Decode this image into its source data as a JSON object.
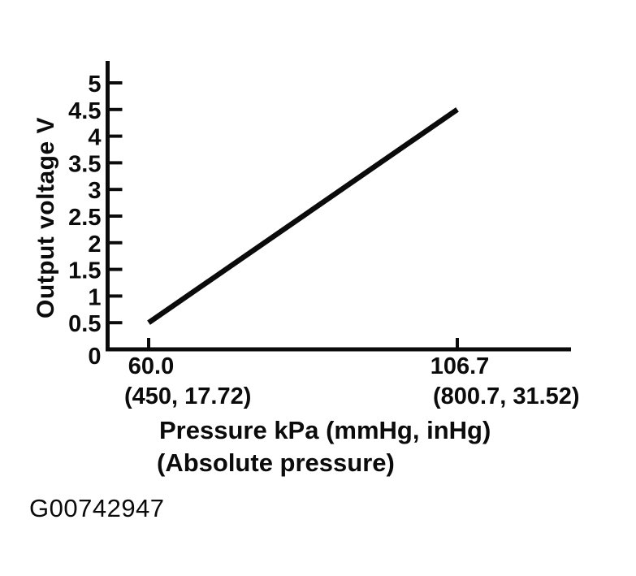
{
  "figure": {
    "id": "G00742947"
  },
  "colors": {
    "ink": "#0b0b0b",
    "background": "#ffffff"
  },
  "chart_data": {
    "type": "line",
    "title": "",
    "ylabel": "Output voltage V",
    "xlabel_line1": "Pressure kPa (mmHg, inHg)",
    "xlabel_line2": "(Absolute pressure)",
    "x": [
      60.0,
      106.7
    ],
    "y": [
      0.5,
      4.5
    ],
    "x_units": "kPa (mmHg, inHg)",
    "y_units": "V",
    "x_tick_values": [
      60.0,
      106.7
    ],
    "x_tick_labels": [
      "60.0",
      "106.7"
    ],
    "x_tick_sublabels": [
      "(450, 17.72)",
      "(800.7, 31.52)"
    ],
    "y_tick_values": [
      0,
      0.5,
      1,
      1.5,
      2,
      2.5,
      3,
      3.5,
      4,
      4.5,
      5
    ],
    "y_tick_labels": [
      "0",
      "0.5",
      "1",
      "1.5",
      "2",
      "2.5",
      "3",
      "3.5",
      "4",
      "4.5",
      "5"
    ],
    "xlim": [
      53.7,
      123.9
    ],
    "ylim": [
      0,
      5.4
    ],
    "grid": false,
    "legend": null,
    "points": [
      {
        "pressure_kpa": 60.0,
        "pressure_mmhg": 450,
        "pressure_inhg": 17.72,
        "output_voltage_v": 0.5
      },
      {
        "pressure_kpa": 106.7,
        "pressure_mmhg": 800.7,
        "pressure_inhg": 31.52,
        "output_voltage_v": 4.5
      }
    ]
  }
}
